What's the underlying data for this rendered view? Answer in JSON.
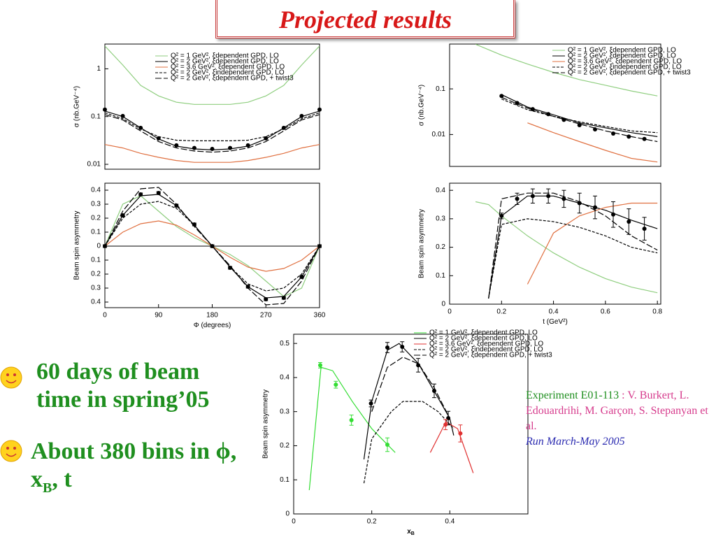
{
  "title": "Projected results",
  "bullets": [
    {
      "text": "60 days of beam time in spring’05"
    },
    {
      "text": "About 380 bins in ϕ, x",
      "sub": "B",
      "tail": ", t"
    }
  ],
  "experiment": {
    "label": "Experiment E01-113",
    "authors": ": V. Burkert, L. Edouardrihi, M. Garçon, S. Stepanyan et al.",
    "run": "Run March-May 2005"
  },
  "chart_data": [
    {
      "type": "line",
      "ylabel": "σ (nb.GeV⁻⁴)",
      "log_y": true,
      "xlim": [
        0,
        360
      ],
      "ylim": [
        0.0079,
        3.3
      ],
      "yticks": [
        0.01,
        0.1,
        1
      ],
      "series": [
        {
          "name": "Q² = 1 GeV², ξdependent GPD, LO",
          "color": "#8fce7f",
          "style": "solid",
          "x": [
            0,
            30,
            60,
            90,
            120,
            150,
            180,
            210,
            240,
            270,
            300,
            330,
            360
          ],
          "values": [
            3,
            1.2,
            0.45,
            0.27,
            0.2,
            0.18,
            0.18,
            0.18,
            0.2,
            0.27,
            0.45,
            1.2,
            3
          ]
        },
        {
          "name": "Q² = 2 GeV², ξdependent GPD, LO",
          "color": "#000000",
          "style": "solid",
          "x": [
            0,
            30,
            60,
            90,
            120,
            150,
            180,
            210,
            240,
            270,
            300,
            330,
            360
          ],
          "values": [
            0.13,
            0.1,
            0.058,
            0.034,
            0.024,
            0.021,
            0.02,
            0.021,
            0.024,
            0.034,
            0.058,
            0.1,
            0.13
          ]
        },
        {
          "name": "Q² = 3.6 GeV², ξdependent GPD, LO",
          "color": "#e07040",
          "style": "solid",
          "x": [
            0,
            30,
            60,
            90,
            120,
            150,
            180,
            210,
            240,
            270,
            300,
            330,
            360
          ],
          "values": [
            0.026,
            0.022,
            0.017,
            0.014,
            0.012,
            0.011,
            0.011,
            0.011,
            0.012,
            0.014,
            0.017,
            0.022,
            0.026
          ]
        },
        {
          "name": "Q² = 2 GeV², ξindependent GPD, LO",
          "color": "#000000",
          "style": "dashed",
          "x": [
            0,
            30,
            60,
            90,
            120,
            150,
            180,
            210,
            240,
            270,
            300,
            330,
            360
          ],
          "values": [
            0.12,
            0.09,
            0.055,
            0.038,
            0.032,
            0.031,
            0.031,
            0.031,
            0.032,
            0.038,
            0.055,
            0.09,
            0.12
          ]
        },
        {
          "name": "Q² = 2 GeV², ξdependent GPD, + twist3",
          "color": "#000000",
          "style": "longdash",
          "x": [
            0,
            30,
            60,
            90,
            120,
            150,
            180,
            210,
            240,
            270,
            300,
            330,
            360
          ],
          "values": [
            0.11,
            0.085,
            0.05,
            0.03,
            0.022,
            0.019,
            0.018,
            0.019,
            0.022,
            0.03,
            0.05,
            0.085,
            0.11
          ]
        }
      ],
      "points": [
        {
          "color": "#000000",
          "x": [
            0,
            30,
            60,
            90,
            120,
            150,
            180,
            210,
            240,
            270,
            300,
            330,
            360
          ],
          "values": [
            0.14,
            0.103,
            0.058,
            0.035,
            0.025,
            0.022,
            0.021,
            0.022,
            0.025,
            0.035,
            0.058,
            0.103,
            0.14
          ]
        }
      ]
    },
    {
      "type": "line",
      "ylabel": "Beam spin asymmetry",
      "xlabel": "Φ (degrees)",
      "xlim": [
        0,
        360
      ],
      "ylim": [
        -0.44,
        0.45
      ],
      "zero_line": true,
      "xticks": [
        0,
        90,
        180,
        270,
        360
      ],
      "yticks": [
        0.4,
        0.3,
        0.2,
        0.1,
        0,
        {
          "value": -0.1,
          "label": "0.1"
        },
        {
          "value": -0.2,
          "label": "0.2"
        },
        {
          "value": -0.3,
          "label": "0.3"
        },
        {
          "value": -0.4,
          "label": "0.4"
        }
      ],
      "series": [
        {
          "color": "#8fce7f",
          "style": "solid",
          "x": [
            0,
            30,
            60,
            90,
            120,
            150,
            180,
            210,
            240,
            270,
            300,
            330,
            360
          ],
          "values": [
            0,
            0.3,
            0.36,
            0.25,
            0.14,
            0.06,
            0,
            -0.06,
            -0.14,
            -0.25,
            -0.36,
            -0.3,
            0
          ]
        },
        {
          "color": "#000000",
          "style": "solid",
          "x": [
            0,
            30,
            60,
            90,
            120,
            150,
            180,
            210,
            240,
            270,
            300,
            330,
            360
          ],
          "values": [
            0,
            0.22,
            0.36,
            0.37,
            0.29,
            0.15,
            0,
            -0.15,
            -0.29,
            -0.37,
            -0.36,
            -0.22,
            0
          ]
        },
        {
          "color": "#e07040",
          "style": "solid",
          "x": [
            0,
            30,
            60,
            90,
            120,
            150,
            180,
            210,
            240,
            270,
            300,
            330,
            360
          ],
          "values": [
            0,
            0.1,
            0.16,
            0.18,
            0.15,
            0.08,
            0,
            -0.08,
            -0.15,
            -0.18,
            -0.16,
            -0.1,
            0
          ]
        },
        {
          "color": "#000000",
          "style": "dashed",
          "x": [
            0,
            30,
            60,
            90,
            120,
            150,
            180,
            210,
            240,
            270,
            300,
            330,
            360
          ],
          "values": [
            0,
            0.2,
            0.3,
            0.32,
            0.27,
            0.15,
            0,
            -0.15,
            -0.27,
            -0.32,
            -0.3,
            -0.2,
            0
          ]
        },
        {
          "color": "#000000",
          "style": "longdash",
          "x": [
            0,
            30,
            60,
            90,
            120,
            150,
            180,
            210,
            240,
            270,
            300,
            330,
            360
          ],
          "values": [
            0,
            0.25,
            0.41,
            0.42,
            0.3,
            0.14,
            0,
            -0.14,
            -0.3,
            -0.42,
            -0.41,
            -0.25,
            0
          ]
        }
      ],
      "points": [
        {
          "color": "#000000",
          "x": [
            0,
            30,
            60,
            90,
            120,
            150,
            180,
            210,
            240,
            270,
            300,
            330,
            360
          ],
          "values": [
            0,
            0.22,
            0.37,
            0.38,
            0.29,
            0.155,
            0,
            -0.155,
            -0.29,
            -0.38,
            -0.37,
            -0.22,
            0
          ],
          "errors": [
            0.01,
            0.01,
            0.01,
            0.01,
            0.01,
            0.01,
            0.01,
            0.01,
            0.01,
            0.01,
            0.01,
            0.01,
            0.01
          ]
        }
      ]
    },
    {
      "type": "line",
      "ylabel": "σ (nb.GeV⁻⁴)",
      "log_y": true,
      "xlim": [
        0,
        0.813
      ],
      "ylim": [
        0.002,
        0.96
      ],
      "yticks": [
        0.01,
        0.1
      ],
      "series": [
        {
          "name": "Q² = 1 GeV², ξdependent GPD, LO",
          "color": "#8fce7f",
          "style": "solid",
          "x": [
            0.1,
            0.2,
            0.3,
            0.4,
            0.5,
            0.6,
            0.7,
            0.8
          ],
          "values": [
            0.95,
            0.55,
            0.35,
            0.23,
            0.16,
            0.12,
            0.09,
            0.07
          ]
        },
        {
          "name": "Q² = 2 GeV², ξdependent GPD, LO",
          "color": "#000000",
          "style": "solid",
          "x": [
            0.1,
            0.2,
            0.3,
            0.4,
            0.5,
            0.6,
            0.7,
            0.8
          ],
          "values": [
            null,
            0.075,
            0.04,
            0.027,
            0.018,
            0.014,
            0.011,
            0.009
          ]
        },
        {
          "name": "Q² = 3.6 GeV², ξdependent GPD, LO",
          "color": "#e07040",
          "style": "solid",
          "x": [
            0.1,
            0.2,
            0.3,
            0.4,
            0.5,
            0.6,
            0.7,
            0.8
          ],
          "values": [
            null,
            null,
            0.018,
            0.011,
            0.007,
            0.0045,
            0.003,
            0.0025
          ]
        },
        {
          "name": "Q² = 2 GeV², ξindependent GPD, LO",
          "color": "#000000",
          "style": "dashed",
          "x": [
            0.1,
            0.2,
            0.3,
            0.4,
            0.5,
            0.6,
            0.7,
            0.8
          ],
          "values": [
            null,
            0.06,
            0.035,
            0.025,
            0.019,
            0.015,
            0.012,
            0.011
          ]
        },
        {
          "name": "Q² = 2 GeV², ξdependent GPD, + twist3",
          "color": "#000000",
          "style": "longdash",
          "x": [
            0.1,
            0.2,
            0.3,
            0.4,
            0.5,
            0.6,
            0.7,
            0.8
          ],
          "values": [
            null,
            0.065,
            0.038,
            0.025,
            0.017,
            0.012,
            0.009,
            0.007
          ]
        }
      ],
      "points": [
        {
          "color": "#000000",
          "x": [
            0.2,
            0.26,
            0.32,
            0.38,
            0.44,
            0.5,
            0.56,
            0.63,
            0.69,
            0.75
          ],
          "values": [
            0.07,
            0.049,
            0.036,
            0.028,
            0.021,
            0.016,
            0.013,
            0.0105,
            0.009,
            0.008
          ]
        }
      ]
    },
    {
      "type": "line",
      "ylabel": "Beam spin asymmetry",
      "xlabel": "t (GeV²)",
      "xlim": [
        0,
        0.813
      ],
      "ylim": [
        0,
        0.425
      ],
      "xticks": [
        0,
        0.2,
        0.4,
        0.6,
        0.8
      ],
      "yticks": [
        0,
        0.1,
        0.2,
        0.3,
        0.4
      ],
      "series": [
        {
          "color": "#8fce7f",
          "style": "solid",
          "x": [
            0.1,
            0.15,
            0.2,
            0.3,
            0.4,
            0.5,
            0.6,
            0.7,
            0.8
          ],
          "values": [
            0.36,
            0.35,
            0.31,
            0.24,
            0.18,
            0.13,
            0.09,
            0.06,
            0.04
          ]
        },
        {
          "color": "#000000",
          "style": "solid",
          "x": [
            0.1,
            0.15,
            0.2,
            0.3,
            0.4,
            0.5,
            0.6,
            0.7,
            0.8
          ],
          "values": [
            null,
            0.02,
            0.31,
            0.38,
            0.38,
            0.355,
            0.33,
            0.295,
            0.265
          ]
        },
        {
          "color": "#e07040",
          "style": "solid",
          "x": [
            0.1,
            0.15,
            0.2,
            0.3,
            0.4,
            0.5,
            0.6,
            0.7,
            0.8
          ],
          "values": [
            null,
            null,
            null,
            0.07,
            0.25,
            0.31,
            0.34,
            0.355,
            0.355
          ]
        },
        {
          "color": "#000000",
          "style": "dashed",
          "x": [
            0.1,
            0.15,
            0.2,
            0.3,
            0.4,
            0.5,
            0.6,
            0.7,
            0.8
          ],
          "values": [
            null,
            0.02,
            0.28,
            0.3,
            0.29,
            0.27,
            0.24,
            0.2,
            0.18
          ]
        },
        {
          "color": "#000000",
          "style": "longdash",
          "x": [
            0.1,
            0.15,
            0.2,
            0.3,
            0.4,
            0.5,
            0.6,
            0.7,
            0.8
          ],
          "values": [
            null,
            0.02,
            0.37,
            0.39,
            0.39,
            0.36,
            0.31,
            0.24,
            0.19
          ]
        }
      ],
      "points": [
        {
          "color": "#000000",
          "x": [
            0.2,
            0.26,
            0.32,
            0.38,
            0.44,
            0.5,
            0.56,
            0.63,
            0.69,
            0.75
          ],
          "values": [
            0.31,
            0.37,
            0.38,
            0.38,
            0.37,
            0.355,
            0.34,
            0.315,
            0.29,
            0.265
          ],
          "errors": [
            0.01,
            0.02,
            0.025,
            0.025,
            0.03,
            0.035,
            0.04,
            0.045,
            0.045,
            0.04
          ]
        }
      ]
    },
    {
      "type": "line",
      "ylabel": "Beam spin asymmetry",
      "xlabel": "x",
      "xlabel_sub": "B",
      "xlim": [
        0,
        0.6
      ],
      "ylim": [
        0,
        0.527
      ],
      "xticks": [
        0,
        0.2,
        0.4
      ],
      "yticks": [
        0,
        0.1,
        0.2,
        0.3,
        0.4,
        0.5
      ],
      "series": [
        {
          "name": "Q² = 1 GeV², ξdependent GPD, LO",
          "color": "#33dd33",
          "style": "solid",
          "x": [
            0.04,
            0.07,
            0.1,
            0.15,
            0.2,
            0.26
          ],
          "values": [
            0.07,
            0.43,
            0.42,
            0.33,
            0.25,
            0.18
          ]
        },
        {
          "name": "Q² = 2 GeV², ξdependent GPD, LO",
          "color": "#000000",
          "style": "solid",
          "x": [
            0.18,
            0.2,
            0.24,
            0.27,
            0.32,
            0.36,
            0.4,
            0.41
          ],
          "values": [
            0.16,
            0.33,
            0.48,
            0.5,
            0.44,
            0.36,
            0.28,
            0.23
          ]
        },
        {
          "name": "Q² = 3.6 GeV², ξdependent GPD, LO",
          "color": "#e03030",
          "style": "solid",
          "x": [
            0.35,
            0.39,
            0.42,
            0.46
          ],
          "values": [
            0.18,
            0.27,
            0.25,
            0.12
          ]
        },
        {
          "name": "Q² = 2 GeV², ξindependent GPD, LO",
          "color": "#000000",
          "style": "dashed",
          "x": [
            0.18,
            0.2,
            0.25,
            0.28,
            0.33,
            0.37,
            0.41
          ],
          "values": [
            0.09,
            0.22,
            0.3,
            0.33,
            0.33,
            0.3,
            0.25
          ]
        },
        {
          "name": "Q² = 2 GeV², ξdependent GPD, + twist3",
          "color": "#000000",
          "style": "longdash",
          "x": [
            0.2,
            0.24,
            0.28,
            0.32,
            0.36,
            0.4
          ],
          "values": [
            0.3,
            0.43,
            0.46,
            0.44,
            0.37,
            0.28
          ]
        }
      ],
      "points": [
        {
          "color": "#33dd33",
          "x": [
            0.068,
            0.108,
            0.148,
            0.24
          ],
          "values": [
            0.436,
            0.379,
            0.275,
            0.203
          ],
          "errors": [
            0.008,
            0.01,
            0.015,
            0.02
          ]
        },
        {
          "color": "#000000",
          "x": [
            0.198,
            0.24,
            0.278,
            0.319,
            0.36,
            0.396
          ],
          "values": [
            0.324,
            0.488,
            0.49,
            0.436,
            0.361,
            0.281
          ],
          "errors": [
            0.01,
            0.015,
            0.015,
            0.02,
            0.02,
            0.02
          ]
        },
        {
          "color": "#e03030",
          "x": [
            0.389,
            0.427
          ],
          "values": [
            0.262,
            0.236
          ],
          "errors": [
            0.015,
            0.025
          ]
        }
      ]
    }
  ]
}
